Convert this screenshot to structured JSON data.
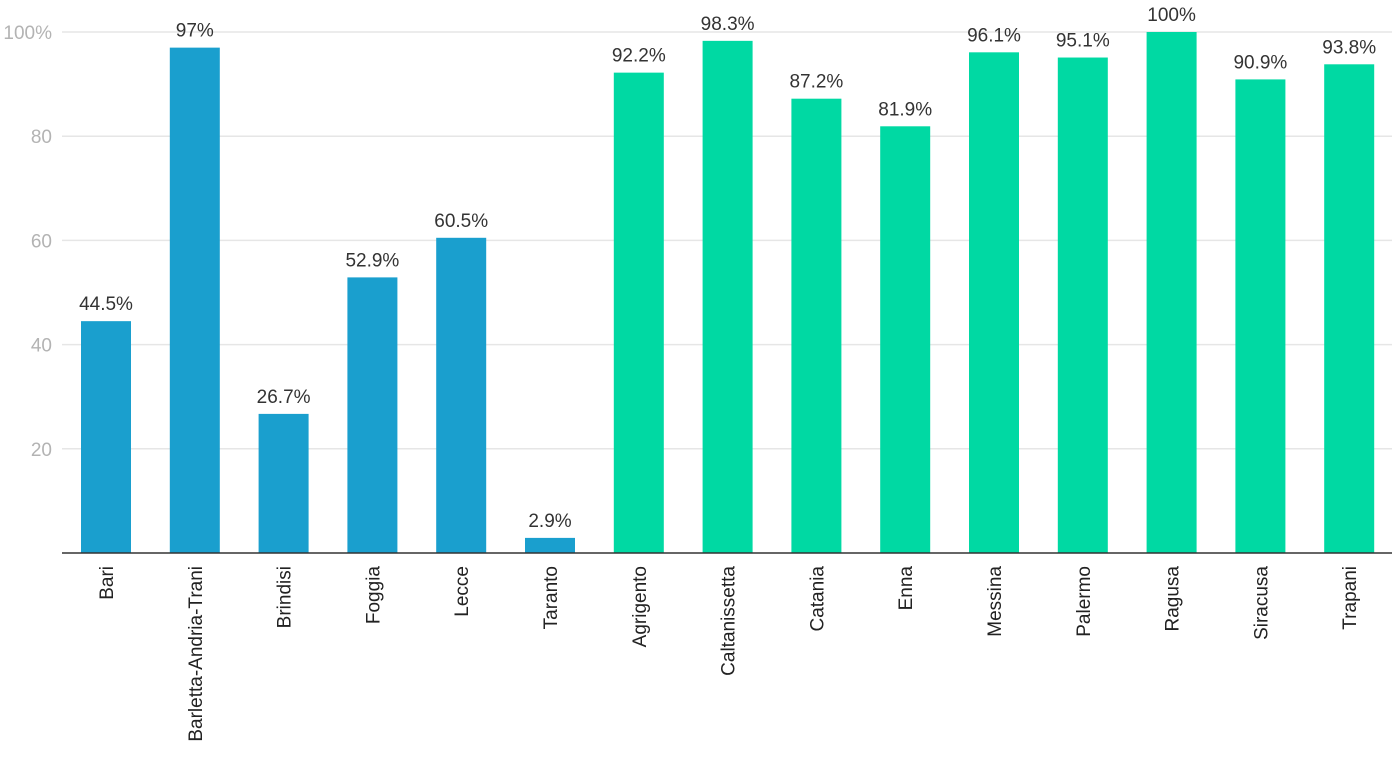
{
  "chart_data": {
    "type": "bar",
    "categories": [
      "Bari",
      "Barletta-Andria-Trani",
      "Brindisi",
      "Foggia",
      "Lecce",
      "Taranto",
      "Agrigento",
      "Caltanissetta",
      "Catania",
      "Enna",
      "Messina",
      "Palermo",
      "Ragusa",
      "Siracusa",
      "Trapani"
    ],
    "values": [
      44.5,
      97,
      26.7,
      52.9,
      60.5,
      2.9,
      92.2,
      98.3,
      87.2,
      81.9,
      96.1,
      95.1,
      100,
      90.9,
      93.8
    ],
    "data_labels": [
      "44.5%",
      "97%",
      "26.7%",
      "52.9%",
      "60.5%",
      "2.9%",
      "92.2%",
      "98.3%",
      "87.2%",
      "81.9%",
      "96.1%",
      "95.1%",
      "100%",
      "90.9%",
      "93.8%"
    ],
    "bar_colors": [
      "#1a9fce",
      "#1a9fce",
      "#1a9fce",
      "#1a9fce",
      "#1a9fce",
      "#1a9fce",
      "#00d9a3",
      "#00d9a3",
      "#00d9a3",
      "#00d9a3",
      "#00d9a3",
      "#00d9a3",
      "#00d9a3",
      "#00d9a3",
      "#00d9a3"
    ],
    "y_ticks": [
      {
        "value": 20,
        "label": "20"
      },
      {
        "value": 40,
        "label": "40"
      },
      {
        "value": 60,
        "label": "60"
      },
      {
        "value": 80,
        "label": "80"
      },
      {
        "value": 100,
        "label": "100%"
      }
    ],
    "ylim": [
      0,
      100
    ],
    "grid": true,
    "title": "",
    "xlabel": "",
    "ylabel": ""
  }
}
